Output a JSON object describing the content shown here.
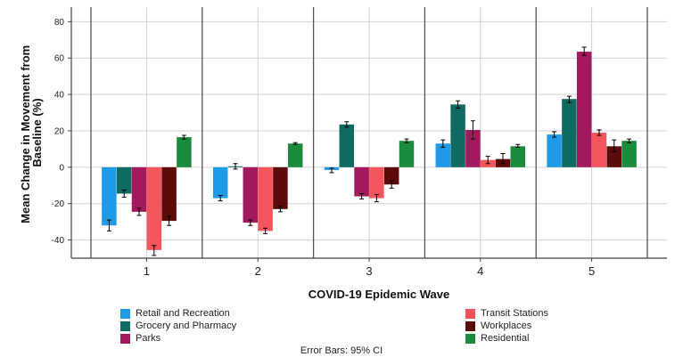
{
  "chart_data": {
    "type": "bar",
    "xlabel": "COVID-19 Epidemic Wave",
    "ylabel_lines": [
      "Mean Change in Movement from",
      "Baseline (%)"
    ],
    "categories": [
      "1",
      "2",
      "3",
      "4",
      "5"
    ],
    "ylim": [
      -50,
      88
    ],
    "yticks": [
      80,
      60,
      40,
      20,
      0,
      -20,
      -40
    ],
    "grid": true,
    "legend_placement": "bottom",
    "footnote": "Error Bars: 95% CI",
    "series": [
      {
        "name": "Retail and Recreation",
        "color": "#1f9ae6",
        "values": [
          -32,
          -17,
          -1.5,
          13,
          18
        ],
        "ci_low": [
          -35,
          -18.5,
          -3,
          11,
          16.5
        ],
        "ci_high": [
          -29,
          -15.5,
          -0.5,
          15,
          19.5
        ]
      },
      {
        "name": "Grocery and Pharmacy",
        "color": "#0f6b61",
        "values": [
          -14.5,
          0.5,
          23.5,
          34.5,
          37.5
        ],
        "ci_low": [
          -16.5,
          -1,
          22,
          32.5,
          35.5
        ],
        "ci_high": [
          -12.5,
          2,
          25,
          36.5,
          39
        ]
      },
      {
        "name": "Parks",
        "color": "#a3195e",
        "values": [
          -24.5,
          -30.5,
          -16,
          20.5,
          63.5
        ],
        "ci_low": [
          -26.5,
          -32,
          -17.5,
          15.5,
          61.5
        ],
        "ci_high": [
          -22.5,
          -29,
          -14.5,
          25.5,
          66
        ]
      },
      {
        "name": "Transit Stations",
        "color": "#f4545c",
        "values": [
          -45.5,
          -35,
          -17,
          4,
          19
        ],
        "ci_low": [
          -48.5,
          -36.5,
          -19,
          2,
          17.5
        ],
        "ci_high": [
          -43,
          -33.5,
          -15,
          6,
          20.5
        ]
      },
      {
        "name": "Workplaces",
        "color": "#5c0a0a",
        "values": [
          -29.5,
          -23,
          -9.5,
          4.5,
          11.5
        ],
        "ci_low": [
          -32,
          -24.5,
          -11.5,
          2,
          8.5
        ],
        "ci_high": [
          -27,
          -21.5,
          -7.5,
          7.5,
          15
        ]
      },
      {
        "name": "Residential",
        "color": "#1a8a3c",
        "values": [
          16.5,
          13,
          14.5,
          11.5,
          14.5
        ],
        "ci_low": [
          15.5,
          12.5,
          13.5,
          11,
          13.5
        ],
        "ci_high": [
          17.5,
          13.5,
          15.5,
          12.5,
          15.5
        ]
      }
    ]
  }
}
